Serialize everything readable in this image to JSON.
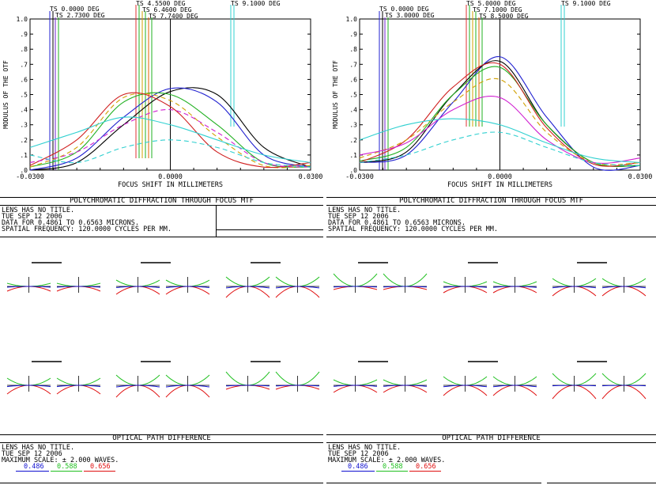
{
  "mtf_left": {
    "labels": [
      "TS 0.0000 DEG",
      "TS 2.7300 DEG",
      "TS 4.5500 DEG",
      "TS 6.4600 DEG",
      "TS 7.7400 DEG",
      "TS 9.1000 DEG"
    ],
    "header": "POLYCHROMATIC DIFFRACTION THROUGH FOCUS MTF",
    "lines": [
      "LENS HAS NO TITLE.",
      "TUE SEP 12 2006",
      "DATA FOR 0.4861 TO 0.6563 MICRONS.",
      "SPATIAL FREQUENCY: 120.0000 CYCLES PER MM."
    ]
  },
  "mtf_right": {
    "labels": [
      "TS 0.0000 DEG",
      "TS 3.0000 DEG",
      "TS 5.0000 DEG",
      "TS 7.1000 DEG",
      "TS 8.5000 DEG",
      "TS 9.1000 DEG"
    ],
    "header": "POLYCHROMATIC DIFFRACTION THROUGH FOCUS MTF",
    "lines": [
      "LENS HAS NO TITLE.",
      "TUE SEP 12 2006",
      "DATA FOR 0.4861 TO 0.6563 MICRONS.",
      "SPATIAL FREQUENCY: 120.0000 CYCLES PER MM."
    ]
  },
  "opd_left": {
    "header": "OPTICAL PATH DIFFERENCE",
    "lines": [
      "LENS HAS NO TITLE.",
      "TUE SEP 12 2006",
      "MAXIMUM SCALE: ± 2.000 WAVES."
    ],
    "wavelengths": [
      "0.486",
      "0.588",
      "0.656"
    ]
  },
  "opd_right": {
    "header": "OPTICAL PATH DIFFERENCE",
    "lines": [
      "LENS HAS NO TITLE.",
      "TUE SEP 12 2006",
      "MAXIMUM SCALE: ± 2.000 WAVES."
    ],
    "wavelengths": [
      "0.486",
      "0.588",
      "0.656"
    ]
  },
  "colors": {
    "blue": "#1010d0",
    "green": "#20c020",
    "red": "#e01010"
  },
  "chart_data": [
    {
      "type": "line",
      "xlabel": "FOCUS SHIFT IN MILLIMETERS",
      "ylabel": "MODULUS OF THE OTF",
      "xlim": [
        -0.03,
        0.03
      ],
      "ylim": [
        0,
        1
      ],
      "x_ticks": [
        "-0.0300",
        "0.0000",
        "0.0300"
      ],
      "y_ticks": [
        ".0",
        ".1",
        ".2",
        ".3",
        ".4",
        ".5",
        ".6",
        ".7",
        ".8",
        ".9",
        "1.0"
      ],
      "x": [
        -0.03,
        -0.02,
        -0.01,
        0.0,
        0.01,
        0.02,
        0.03
      ],
      "series": [
        {
          "color": "#000000",
          "dash": false,
          "values": [
            0.0,
            0.05,
            0.3,
            0.52,
            0.5,
            0.15,
            0.02
          ]
        },
        {
          "color": "#2020d0",
          "dash": false,
          "values": [
            0.0,
            0.08,
            0.35,
            0.54,
            0.45,
            0.1,
            0.02
          ]
        },
        {
          "color": "#20b020",
          "dash": false,
          "values": [
            0.02,
            0.12,
            0.45,
            0.5,
            0.3,
            0.05,
            0.02
          ]
        },
        {
          "color": "#d0a000",
          "dash": true,
          "values": [
            0.02,
            0.15,
            0.48,
            0.46,
            0.22,
            0.03,
            0.03
          ]
        },
        {
          "color": "#d02020",
          "dash": false,
          "values": [
            0.03,
            0.2,
            0.5,
            0.42,
            0.12,
            0.02,
            0.05
          ]
        },
        {
          "color": "#d020d0",
          "dash": true,
          "values": [
            0.05,
            0.12,
            0.3,
            0.4,
            0.25,
            0.05,
            0.02
          ]
        },
        {
          "color": "#30d0d0",
          "dash": false,
          "values": [
            0.15,
            0.25,
            0.35,
            0.3,
            0.2,
            0.1,
            0.05
          ]
        },
        {
          "color": "#30d0d0",
          "dash": true,
          "values": [
            0.1,
            0.05,
            0.15,
            0.2,
            0.15,
            0.05,
            0.02
          ]
        }
      ]
    },
    {
      "type": "line",
      "xlabel": "FOCUS SHIFT IN MILLIMETERS",
      "ylabel": "MODULUS OF THE OTF",
      "xlim": [
        -0.03,
        0.03
      ],
      "ylim": [
        0,
        1
      ],
      "x_ticks": [
        "-0.0300",
        "0.0000",
        "0.0300"
      ],
      "y_ticks": [
        ".0",
        ".1",
        ".2",
        ".3",
        ".4",
        ".5",
        ".6",
        ".7",
        ".8",
        ".9",
        "1.0"
      ],
      "x": [
        -0.03,
        -0.02,
        -0.01,
        0.0,
        0.01,
        0.02,
        0.03
      ],
      "series": [
        {
          "color": "#2020d0",
          "dash": false,
          "values": [
            0.05,
            0.1,
            0.45,
            0.75,
            0.35,
            0.02,
            0.03
          ]
        },
        {
          "color": "#000000",
          "dash": false,
          "values": [
            0.05,
            0.12,
            0.5,
            0.72,
            0.3,
            0.05,
            0.03
          ]
        },
        {
          "color": "#20b020",
          "dash": false,
          "values": [
            0.06,
            0.15,
            0.5,
            0.68,
            0.3,
            0.05,
            0.03
          ]
        },
        {
          "color": "#d02020",
          "dash": false,
          "values": [
            0.05,
            0.2,
            0.55,
            0.7,
            0.28,
            0.04,
            0.05
          ]
        },
        {
          "color": "#d0a000",
          "dash": true,
          "values": [
            0.08,
            0.2,
            0.45,
            0.6,
            0.25,
            0.05,
            0.05
          ]
        },
        {
          "color": "#d020d0",
          "dash": false,
          "values": [
            0.1,
            0.18,
            0.4,
            0.48,
            0.2,
            0.05,
            0.08
          ]
        },
        {
          "color": "#30d0d0",
          "dash": false,
          "values": [
            0.2,
            0.3,
            0.34,
            0.3,
            0.18,
            0.08,
            0.05
          ]
        },
        {
          "color": "#30d0d0",
          "dash": true,
          "values": [
            0.05,
            0.1,
            0.2,
            0.25,
            0.15,
            0.05,
            0.03
          ]
        }
      ]
    }
  ]
}
